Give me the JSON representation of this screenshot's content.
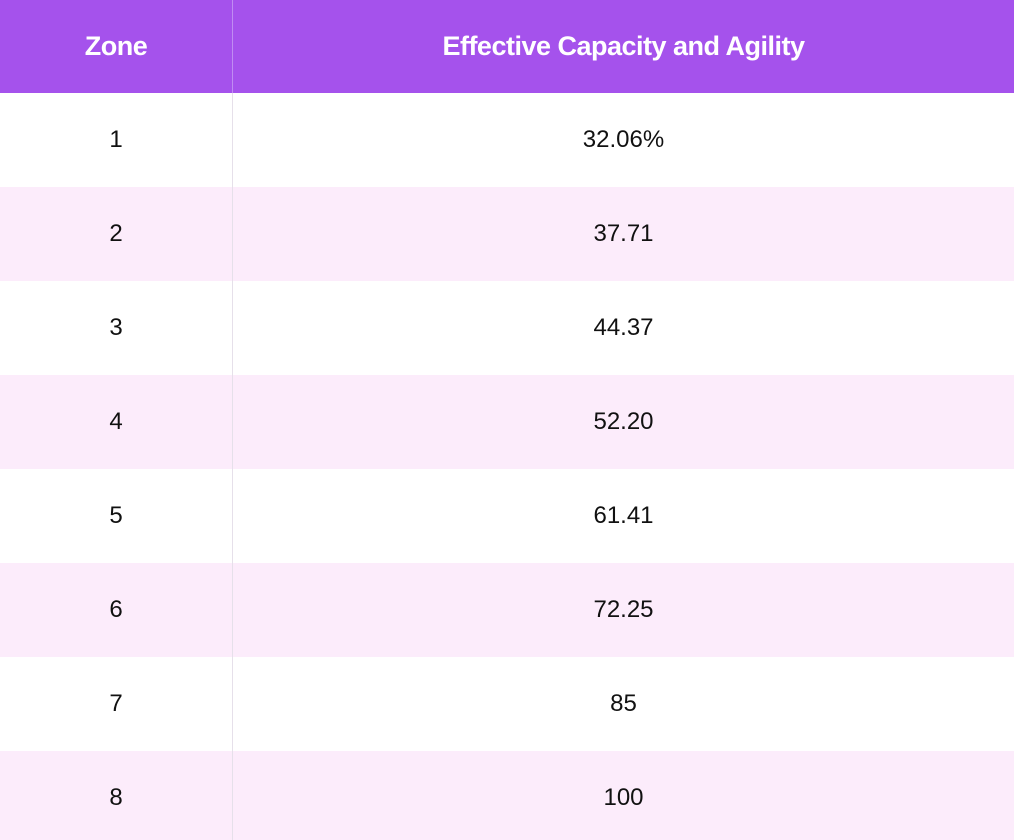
{
  "table": {
    "headers": {
      "zone": "Zone",
      "value": "Effective Capacity and Agility"
    },
    "rows": [
      {
        "zone": "1",
        "value": "32.06%"
      },
      {
        "zone": "2",
        "value": "37.71"
      },
      {
        "zone": "3",
        "value": "44.37"
      },
      {
        "zone": "4",
        "value": "52.20"
      },
      {
        "zone": "5",
        "value": "61.41"
      },
      {
        "zone": "6",
        "value": "72.25"
      },
      {
        "zone": "7",
        "value": "85"
      },
      {
        "zone": "8",
        "value": "100"
      }
    ]
  },
  "colors": {
    "header_bg": "#a552ec",
    "header_text": "#ffffff",
    "stripe_bg": "#fcecfb",
    "row_bg": "#ffffff"
  }
}
